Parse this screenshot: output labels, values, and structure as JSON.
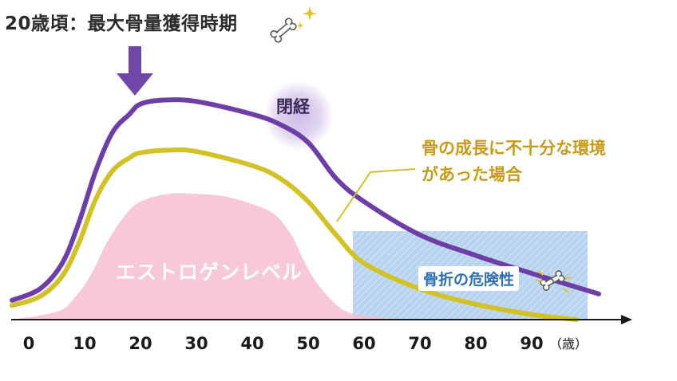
{
  "annotations": {
    "peak": "20歳頃：最大骨量獲得時期",
    "menopause": "閉経",
    "poor_growth_line1": "骨の成長に不十分な環境",
    "poor_growth_line2": "があった場合",
    "estrogen": "エストロゲンレベル",
    "fracture_risk": "骨折の危険性"
  },
  "colors": {
    "normal_bone": "#6e3ea8",
    "poor_bone": "#d2c227",
    "estrogen_fill": "#f6bfcf",
    "risk_zone": "#b7d3ee",
    "menopause_glow": "#c7b3e3",
    "arrow": "#7046a8",
    "axis": "#1a1a1a"
  },
  "icons": [
    "bone-icon",
    "sparkle-icon",
    "broken-bone-icon",
    "down-arrow-icon"
  ],
  "chart_data": {
    "type": "line",
    "xlabel": "",
    "xunit": "（歳）",
    "xticks": [
      0,
      10,
      20,
      30,
      40,
      50,
      60,
      70,
      80,
      90
    ],
    "xlim": [
      -3,
      105
    ],
    "ylim": [
      0,
      1
    ],
    "series": [
      {
        "key": "normal",
        "name": "",
        "color": "#6e3ea8",
        "x": [
          -3,
          2,
          6,
          9,
          12,
          15,
          18,
          20,
          24,
          30,
          40,
          45,
          50,
          55,
          60,
          70,
          80,
          90,
          102
        ],
        "y": [
          0.075,
          0.12,
          0.22,
          0.38,
          0.58,
          0.73,
          0.8,
          0.84,
          0.855,
          0.85,
          0.8,
          0.76,
          0.69,
          0.55,
          0.46,
          0.33,
          0.25,
          0.18,
          0.1
        ]
      },
      {
        "key": "poor",
        "name": "骨の成長に不十分な環境があった場合",
        "color": "#d2c227",
        "x": [
          -3,
          2,
          6,
          9,
          12,
          15,
          18,
          20,
          25,
          30,
          40,
          45,
          50,
          55,
          60,
          70,
          80,
          90,
          98
        ],
        "y": [
          0.055,
          0.09,
          0.17,
          0.3,
          0.47,
          0.58,
          0.63,
          0.65,
          0.66,
          0.655,
          0.6,
          0.55,
          0.46,
          0.33,
          0.22,
          0.12,
          0.06,
          0.02,
          0.0
        ]
      },
      {
        "key": "estrogen",
        "name": "エストロゲンレベル",
        "type": "area",
        "color": "#f6bfcf",
        "x": [
          -3,
          5,
          8,
          11,
          14,
          17,
          20,
          25,
          30,
          35,
          40,
          44,
          47,
          49,
          51,
          54,
          57,
          62,
          68
        ],
        "y": [
          0.0,
          0.03,
          0.08,
          0.17,
          0.3,
          0.4,
          0.46,
          0.49,
          0.49,
          0.48,
          0.45,
          0.41,
          0.33,
          0.24,
          0.16,
          0.08,
          0.03,
          0.01,
          0.0
        ]
      }
    ],
    "risk_zone": {
      "label": "骨折の危険性",
      "x_start": 58,
      "x_end": 100
    },
    "menopause_x": 50,
    "peak_x": 20
  }
}
